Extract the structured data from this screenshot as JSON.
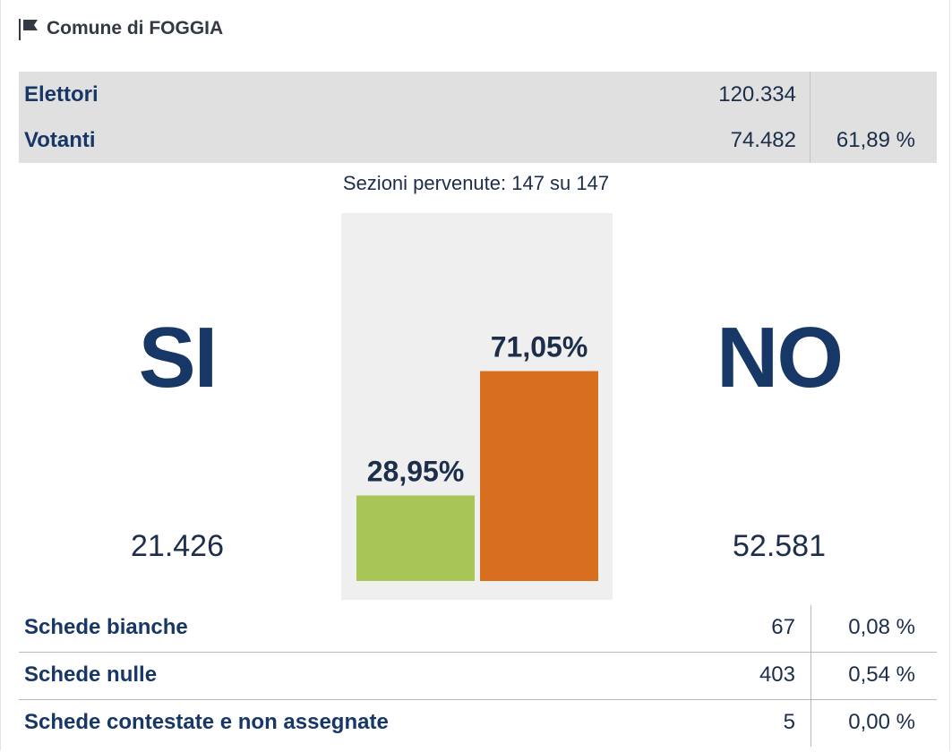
{
  "header": {
    "title": "Comune di FOGGIA",
    "icon": "flag-icon"
  },
  "stats": {
    "elettori": {
      "label": "Elettori",
      "value": "120.334"
    },
    "votanti": {
      "label": "Votanti",
      "value": "74.482",
      "percent": "61,89 %"
    }
  },
  "sezioni": "Sezioni pervenute: 147 su 147",
  "si": {
    "label": "SI",
    "count": "21.426"
  },
  "no": {
    "label": "NO",
    "count": "52.581"
  },
  "chart_data": {
    "type": "bar",
    "categories": [
      "SI",
      "NO"
    ],
    "values": [
      28.95,
      71.05
    ],
    "value_labels": [
      "28,95%",
      "71,05%"
    ],
    "colors": [
      "#a8c658",
      "#d86f1f"
    ],
    "ylim": [
      0,
      100
    ]
  },
  "ballots": [
    {
      "label": "Schede bianche",
      "value": "67",
      "percent": "0,08 %"
    },
    {
      "label": "Schede nulle",
      "value": "403",
      "percent": "0,54 %"
    },
    {
      "label": "Schede contestate e non assegnate",
      "value": "5",
      "percent": "0,00 %"
    }
  ]
}
